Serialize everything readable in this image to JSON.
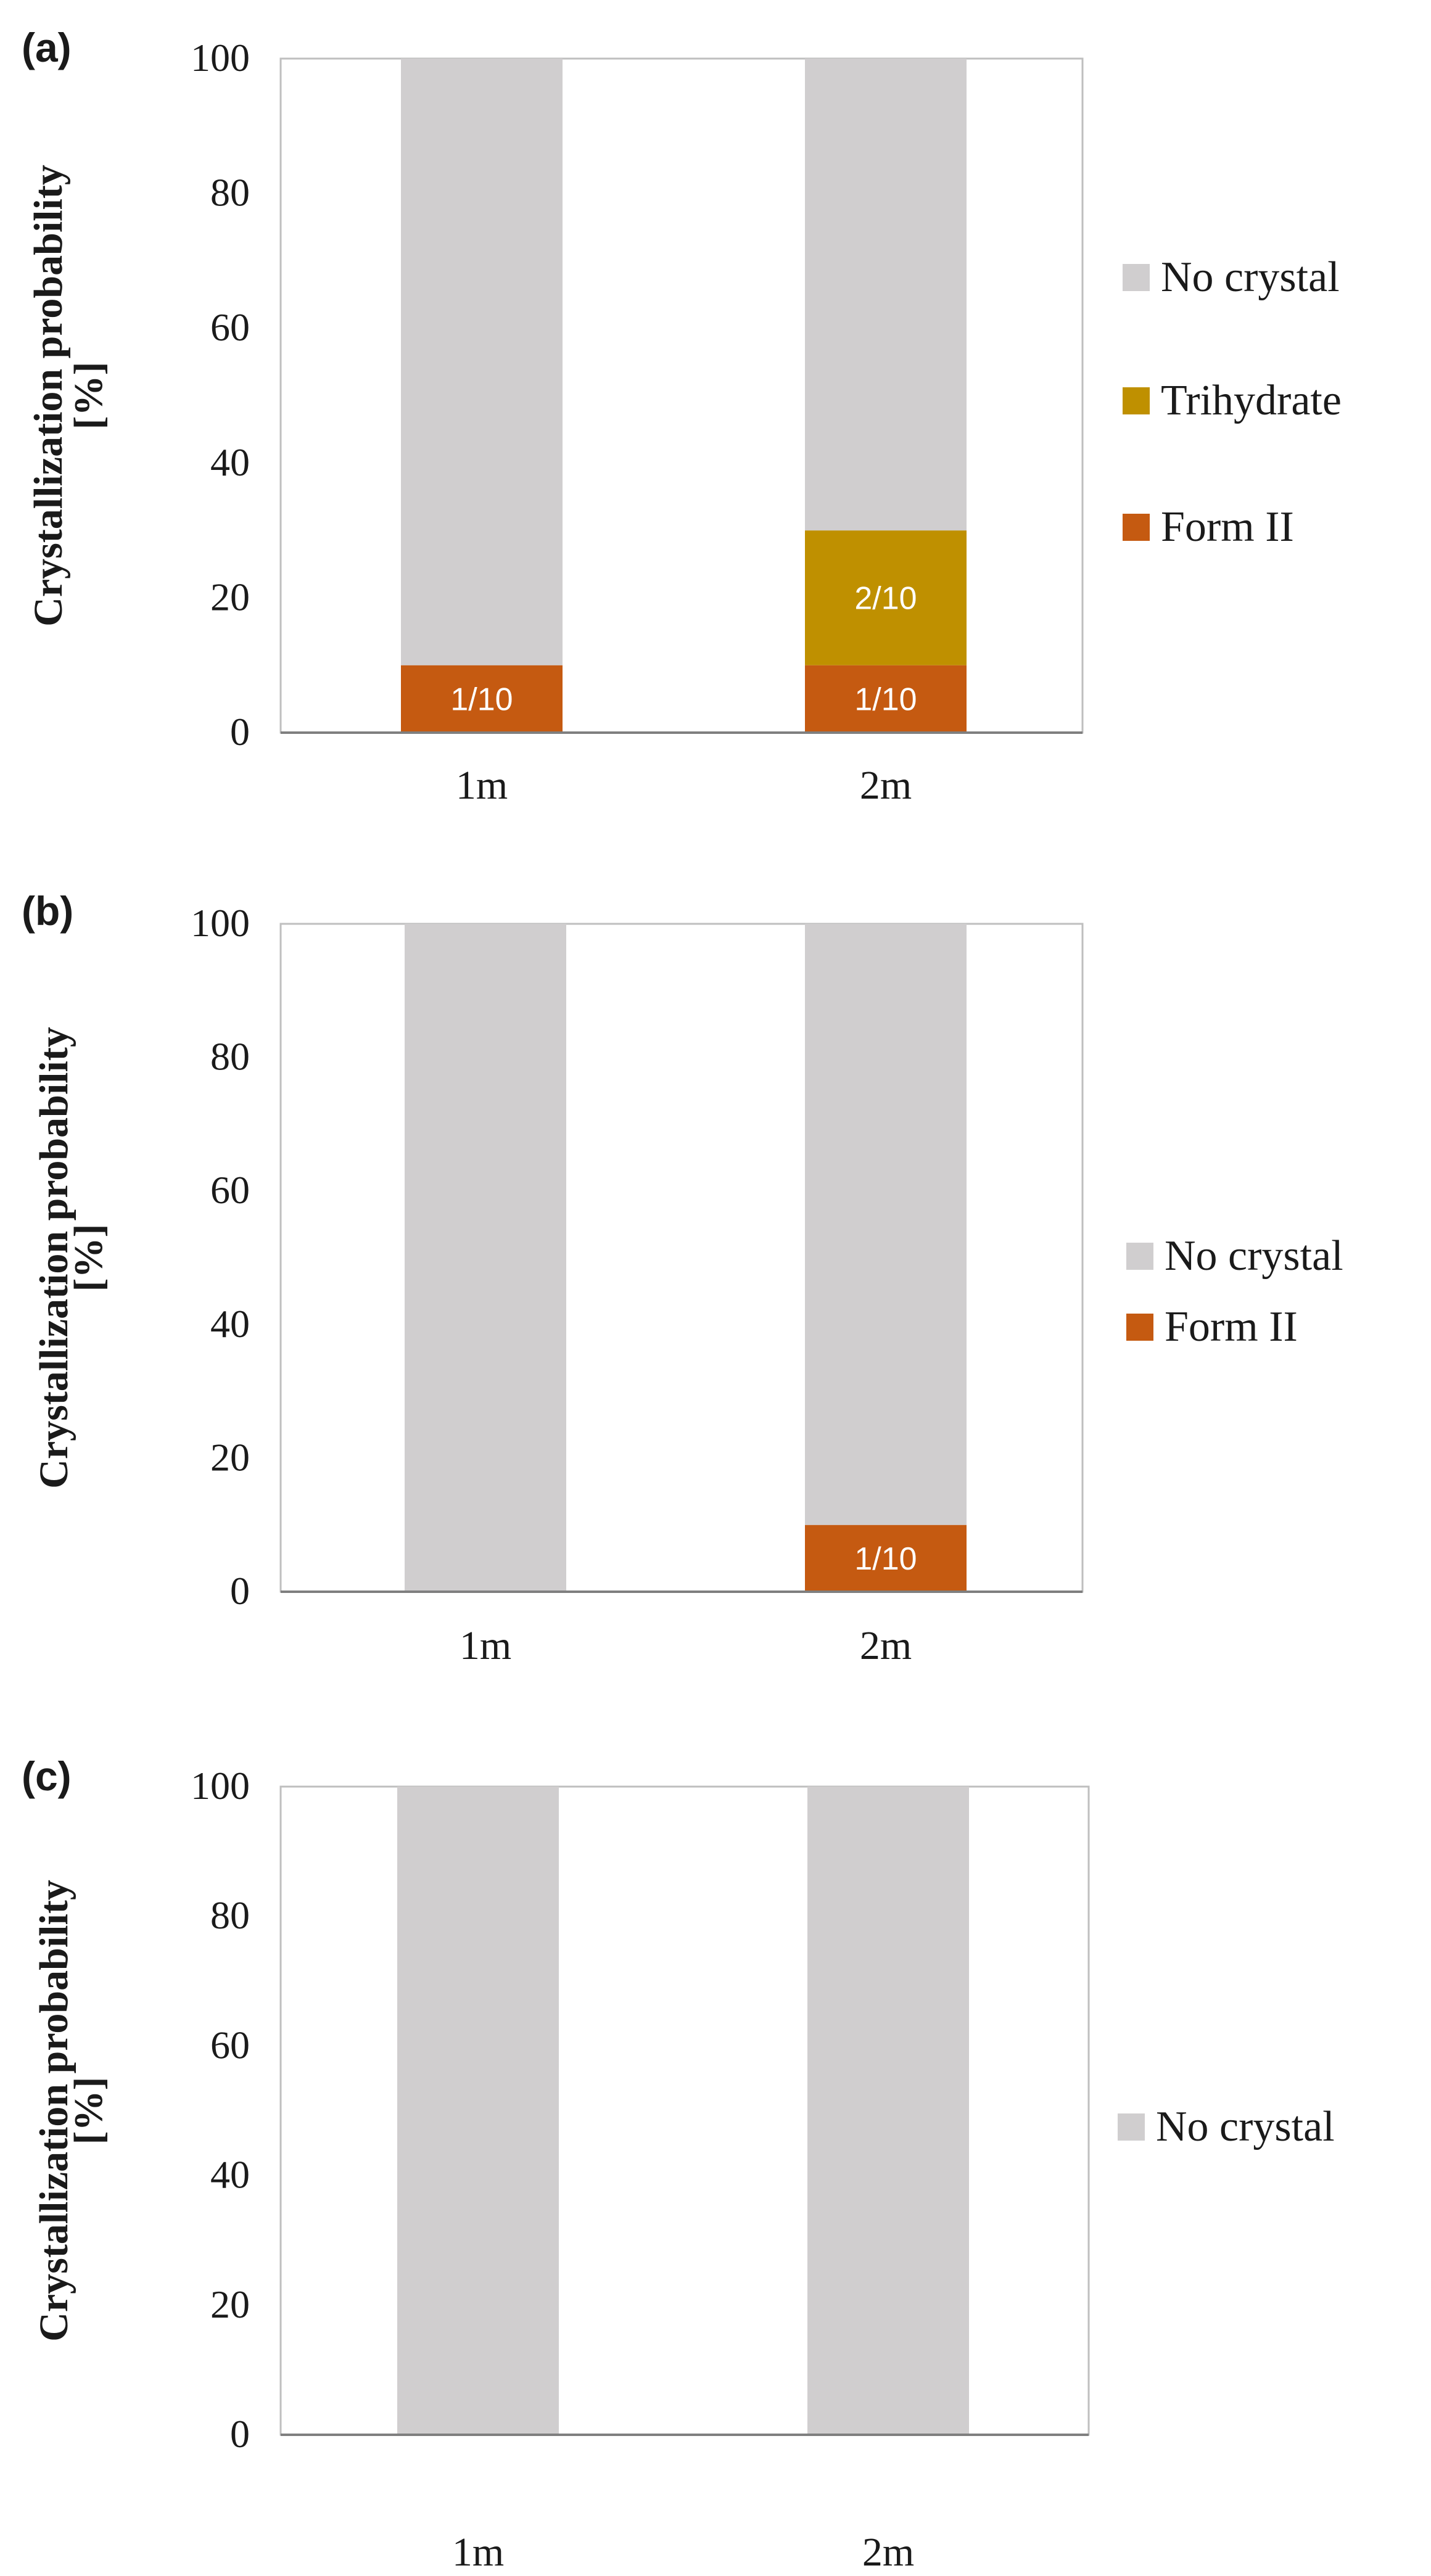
{
  "colors": {
    "no_crystal": "#D0CECF",
    "trihydrate": "#BF9000",
    "form_ii": "#C55A11",
    "axis": "#7f7f7f",
    "text": "#1a1a1a",
    "bar_label": "#ffffff"
  },
  "chart_data": [
    {
      "type": "bar",
      "stacked": true,
      "panel_label": "(a)",
      "ylabel_line1": "Crystallization probability",
      "ylabel_line2": "[%]",
      "ylim": [
        0,
        100
      ],
      "yticks": [
        "0",
        "20",
        "40",
        "60",
        "80",
        "100"
      ],
      "categories": [
        "1m",
        "2m"
      ],
      "series": [
        {
          "name": "Form II",
          "color_key": "form_ii",
          "values": [
            10,
            10
          ],
          "labels": [
            "1/10",
            "1/10"
          ]
        },
        {
          "name": "Trihydrate",
          "color_key": "trihydrate",
          "values": [
            0,
            20
          ],
          "labels": [
            "",
            "2/10"
          ]
        },
        {
          "name": "No crystal",
          "color_key": "no_crystal",
          "values": [
            90,
            70
          ],
          "labels": [
            "",
            ""
          ]
        }
      ],
      "legend": [
        "No crystal",
        "Trihydrate",
        "Form II"
      ],
      "legend_position": "right"
    },
    {
      "type": "bar",
      "stacked": true,
      "panel_label": "(b)",
      "ylabel_line1": "Crystallization probability",
      "ylabel_line2": "[%]",
      "ylim": [
        0,
        100
      ],
      "yticks": [
        "0",
        "20",
        "40",
        "60",
        "80",
        "100"
      ],
      "categories": [
        "1m",
        "2m"
      ],
      "series": [
        {
          "name": "Form II",
          "color_key": "form_ii",
          "values": [
            0,
            10
          ],
          "labels": [
            "",
            "1/10"
          ]
        },
        {
          "name": "No crystal",
          "color_key": "no_crystal",
          "values": [
            100,
            90
          ],
          "labels": [
            "",
            ""
          ]
        }
      ],
      "legend": [
        "No crystal",
        "Form II"
      ],
      "legend_position": "right"
    },
    {
      "type": "bar",
      "stacked": true,
      "panel_label": "(c)",
      "ylabel_line1": "Crystallization probability",
      "ylabel_line2": "[%]",
      "ylim": [
        0,
        100
      ],
      "yticks": [
        "0",
        "20",
        "40",
        "60",
        "80",
        "100"
      ],
      "categories": [
        "1m",
        "2m"
      ],
      "series": [
        {
          "name": "No crystal",
          "color_key": "no_crystal",
          "values": [
            100,
            100
          ],
          "labels": [
            "",
            ""
          ]
        }
      ],
      "legend": [
        "No crystal"
      ],
      "legend_position": "right"
    }
  ]
}
